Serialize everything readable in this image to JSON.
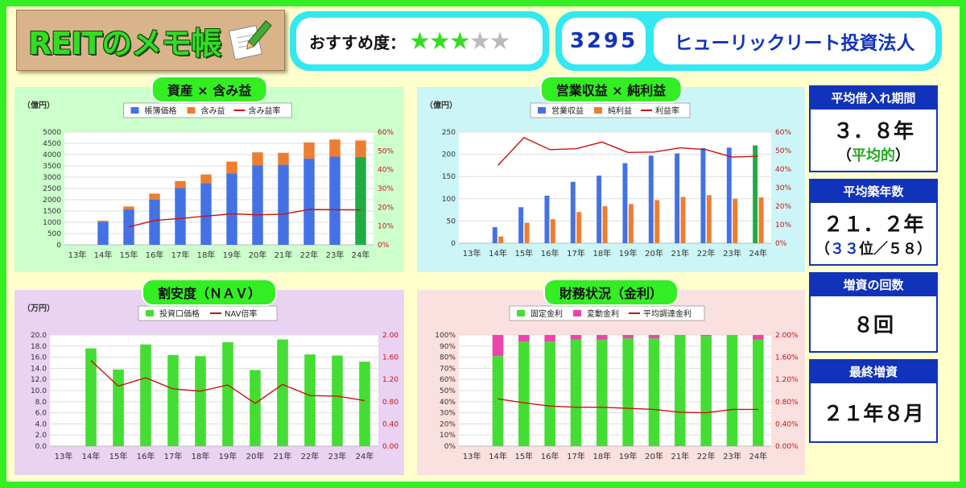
{
  "header": {
    "logo_text": "REITのメモ帳",
    "rating_label": "おすすめ度：",
    "rating": 3,
    "rating_max": 5,
    "code": "3295",
    "name": "ヒューリックリート投資法人"
  },
  "stats": {
    "borrow": {
      "title": "平均借入れ期間",
      "value": "３．８年",
      "note_open": "（",
      "note": "平均的",
      "note_close": "）"
    },
    "age": {
      "title": "平均築年数",
      "value": "２１．２年",
      "rank_open": "（",
      "rank": "３３",
      "rank_mid": "位／５８）"
    },
    "count": {
      "title": "増資の回数",
      "value": "８回"
    },
    "last": {
      "title": "最終増資",
      "value": "２１年８月"
    }
  },
  "chart_data": [
    {
      "id": "assets",
      "type": "bar",
      "title": "資産 × 含み益",
      "unit": "（億円）",
      "categories": [
        "13年",
        "14年",
        "15年",
        "16年",
        "17年",
        "18年",
        "19年",
        "20年",
        "21年",
        "22年",
        "23年",
        "24年"
      ],
      "series": [
        {
          "name": "帳簿価格",
          "type": "bar",
          "color": "#4472e4",
          "values": [
            null,
            1020,
            1570,
            2010,
            2520,
            2740,
            3170,
            3530,
            3550,
            3820,
            3910,
            3900
          ]
        },
        {
          "name": "含み益",
          "type": "bar-stack",
          "color": "#ed7d31",
          "values": [
            null,
            50,
            130,
            260,
            310,
            380,
            520,
            570,
            530,
            720,
            760,
            730
          ]
        },
        {
          "name": "含み益率",
          "type": "line",
          "axis": "right",
          "color": "#cc1111",
          "values": [
            null,
            null,
            9.5,
            13,
            14,
            15.3,
            16.5,
            16,
            16.3,
            18.8,
            18.7,
            18.6
          ]
        }
      ],
      "highlight_index": 11,
      "highlight_color": "#22aa44",
      "ylim": [
        0,
        5000
      ],
      "yticks": [
        0,
        500,
        1000,
        1500,
        2000,
        2500,
        3000,
        3500,
        4000,
        4500,
        5000
      ],
      "y2lim": [
        0,
        60
      ],
      "y2ticks": [
        "0%",
        "10%",
        "20%",
        "30%",
        "40%",
        "50%",
        "60%"
      ]
    },
    {
      "id": "income",
      "type": "bar",
      "title": "営業収益 × 純利益",
      "unit": "（億円）",
      "categories": [
        "13年",
        "14年",
        "15年",
        "16年",
        "17年",
        "18年",
        "19年",
        "20年",
        "21年",
        "22年",
        "23年",
        "24年"
      ],
      "series": [
        {
          "name": "営業収益",
          "type": "bar",
          "color": "#4472e4",
          "values": [
            null,
            36,
            81,
            107,
            138,
            152,
            180,
            197,
            202,
            214,
            215,
            220
          ]
        },
        {
          "name": "純利益",
          "type": "bar",
          "color": "#ed7d31",
          "values": [
            null,
            15,
            46,
            54,
            70,
            83,
            88,
            97,
            104,
            108,
            100,
            103
          ]
        },
        {
          "name": "利益率",
          "type": "line",
          "axis": "right",
          "color": "#cc1111",
          "values": [
            null,
            42,
            57,
            50.5,
            51,
            54.6,
            49,
            49.2,
            51.5,
            50.5,
            46.5,
            47
          ]
        }
      ],
      "highlight_index": 11,
      "highlight_color": "#22aa44",
      "ylim": [
        0,
        250
      ],
      "yticks": [
        0,
        50,
        100,
        150,
        200,
        250
      ],
      "y2lim": [
        0,
        60
      ],
      "y2ticks": [
        "0%",
        "10%",
        "20%",
        "30%",
        "40%",
        "50%",
        "60%"
      ]
    },
    {
      "id": "nav",
      "type": "bar",
      "title": "割安度（ＮＡＶ）",
      "unit": "（万円）",
      "categories": [
        "13年",
        "14年",
        "15年",
        "16年",
        "17年",
        "18年",
        "19年",
        "20年",
        "21年",
        "22年",
        "23年",
        "24年"
      ],
      "series": [
        {
          "name": "投資口価格",
          "type": "bar",
          "color": "#44dd33",
          "values": [
            null,
            17.6,
            13.8,
            18.3,
            16.4,
            16.2,
            18.7,
            13.7,
            19.2,
            16.5,
            16.3,
            15.2
          ]
        },
        {
          "name": "NAV倍率",
          "type": "line",
          "axis": "right",
          "color": "#cc1111",
          "values": [
            null,
            1.54,
            1.08,
            1.23,
            1.03,
            0.99,
            1.1,
            0.77,
            1.11,
            0.91,
            0.9,
            0.82
          ]
        }
      ],
      "ylim": [
        0,
        20
      ],
      "yticks": [
        "0.0",
        "2.0",
        "4.0",
        "6.0",
        "8.0",
        "10.0",
        "12.0",
        "14.0",
        "16.0",
        "18.0",
        "20.0"
      ],
      "y2lim": [
        0,
        2
      ],
      "y2ticks": [
        "0.00",
        "0.40",
        "0.80",
        "1.20",
        "1.60",
        "2.00"
      ]
    },
    {
      "id": "finance",
      "type": "bar",
      "title": "財務状況（金利）",
      "unit": "",
      "categories": [
        "13年",
        "14年",
        "15年",
        "16年",
        "17年",
        "18年",
        "19年",
        "20年",
        "21年",
        "22年",
        "23年",
        "24年"
      ],
      "series": [
        {
          "name": "固定金利",
          "type": "bar",
          "color": "#44dd33",
          "values": [
            null,
            81,
            94,
            94,
            96,
            96,
            97,
            97,
            99.5,
            99,
            100,
            96
          ]
        },
        {
          "name": "変動金利",
          "type": "bar-stack",
          "color": "#ee44aa",
          "values": [
            null,
            19,
            6,
            6,
            4,
            4,
            3,
            3,
            0.5,
            1,
            0,
            4
          ]
        },
        {
          "name": "平均調達金利",
          "type": "line",
          "axis": "right",
          "color": "#cc1111",
          "values": [
            null,
            0.85,
            0.78,
            0.72,
            0.7,
            0.7,
            0.68,
            0.66,
            0.61,
            0.6,
            0.66,
            0.66
          ]
        }
      ],
      "ylim": [
        0,
        100
      ],
      "yticks": [
        "0%",
        "10%",
        "20%",
        "30%",
        "40%",
        "50%",
        "60%",
        "70%",
        "80%",
        "90%",
        "100%"
      ],
      "y2lim": [
        0,
        2
      ],
      "y2ticks": [
        "0.00%",
        "0.40%",
        "0.80%",
        "1.20%",
        "1.60%",
        "2.00%"
      ]
    }
  ],
  "colors": {
    "assets_bg": "#ccffcc",
    "income_bg": "#ccf5f7",
    "nav_bg": "#ead2f2",
    "finance_bg": "#fbe0e0"
  }
}
